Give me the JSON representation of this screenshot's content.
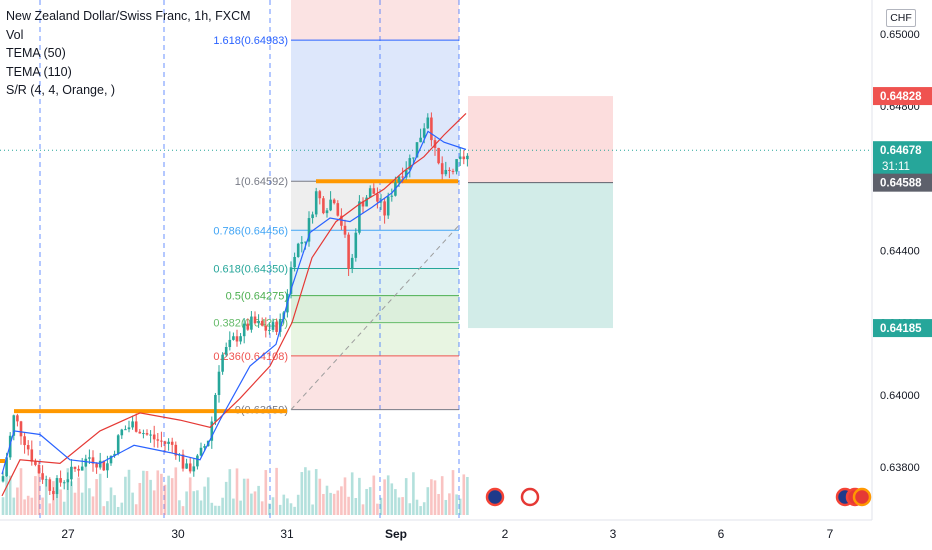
{
  "legend": {
    "title": "New Zealand Dollar/Swiss Franc, 1h, FXCM",
    "indicators": [
      "Vol",
      "TEMA (50)",
      "TEMA (110)",
      "S/R (4, 4, Orange, )"
    ]
  },
  "currency": "CHF",
  "colors": {
    "up": "#26a69a",
    "down": "#ef5350",
    "tema50": "#2962ff",
    "tema110": "#e53935",
    "sr": "#ff9800",
    "stop_zone": "#ef9a9a",
    "target_zone": "#80cbc4",
    "fib_blue": "#42a5f5"
  },
  "chart_data": {
    "type": "candlestick",
    "x_ticks": [
      "27",
      "30",
      "31",
      "Sep",
      "2",
      "3",
      "6",
      "7"
    ],
    "y_ticks": [
      "0.65000",
      "0.64800",
      "0.64600",
      "0.64400",
      "0.64200",
      "0.64000",
      "0.63800"
    ],
    "price_labels": [
      {
        "text": "0.64828",
        "value": 0.64828,
        "color": "#ef5350"
      },
      {
        "text": "0.64678",
        "sub": "31:11",
        "value": 0.64678,
        "color": "#26a69a"
      },
      {
        "text": "0.64588",
        "value": 0.64588,
        "color": "#5d606b"
      },
      {
        "text": "0.64185",
        "value": 0.64185,
        "color": "#26a69a"
      }
    ],
    "current_price": 0.64678,
    "fib_levels": [
      {
        "label": "1.618(0.64983)",
        "ratio": 1.618,
        "value": 0.64983
      },
      {
        "label": "1(0.64592)",
        "ratio": 1,
        "value": 0.64592
      },
      {
        "label": "0.786(0.64456)",
        "ratio": 0.786,
        "value": 0.64456
      },
      {
        "label": "0.618(0.64350)",
        "ratio": 0.618,
        "value": 0.6435
      },
      {
        "label": "0.5(0.64275)",
        "ratio": 0.5,
        "value": 0.64275
      },
      {
        "label": "0.382(0.64200)",
        "ratio": 0.382,
        "value": 0.642
      },
      {
        "label": "0.236(0.64108)",
        "ratio": 0.236,
        "value": 0.64108
      },
      {
        "label": "0(0.63959)",
        "ratio": 0,
        "value": 0.63959
      }
    ],
    "position": {
      "stop": 0.64828,
      "entry": 0.64588,
      "target": 0.64185
    },
    "sr_levels": [
      0.63955,
      0.64592
    ],
    "events": [
      "Sep 1 (AU)",
      "Sep 1 (CH)",
      "Sep 7 (AU)",
      "Sep 7 (CH)",
      "Sep 7 (US)"
    ]
  }
}
